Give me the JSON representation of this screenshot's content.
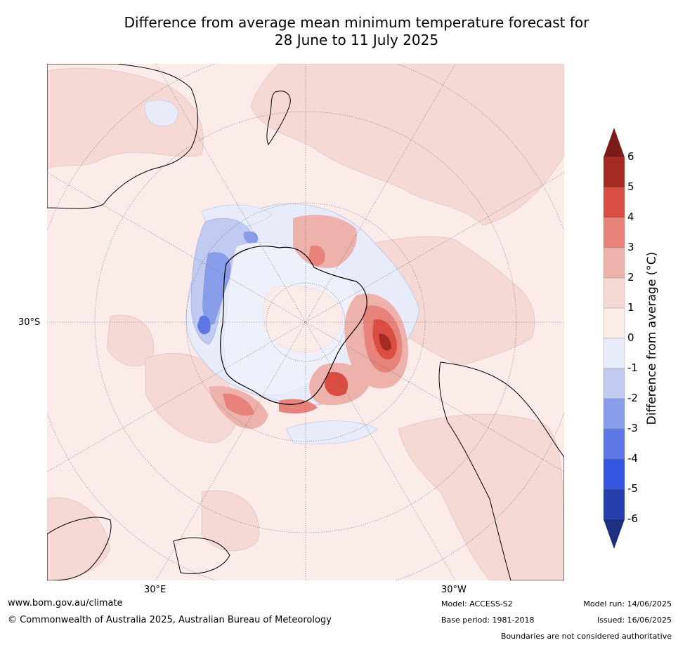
{
  "title": {
    "line1": "Difference from average mean minimum temperature forecast for",
    "line2": "28 June to 11 July 2025"
  },
  "map": {
    "projection": "south-polar-stereographic",
    "lat_label": "30°S",
    "lon_labels": [
      "30°E",
      "30°W"
    ],
    "background_color": "#fbecea",
    "anomaly_regions": [
      {
        "name": "antarctic-interior",
        "color": "#e8ecfa"
      },
      {
        "name": "weddell-sea-warm",
        "color": "#d84c40"
      },
      {
        "name": "ross-sea-warm",
        "color": "#e06050"
      },
      {
        "name": "east-antarctic-coast-cool",
        "color": "#6a82e6"
      }
    ]
  },
  "colorbar": {
    "label": "Difference from average (°C)",
    "ticks": [
      "6",
      "5",
      "4",
      "3",
      "2",
      "1",
      "0",
      "-1",
      "-2",
      "-3",
      "-4",
      "-5",
      "-6"
    ],
    "colors": [
      "#a52a23",
      "#d94d43",
      "#e8837b",
      "#eeb2ac",
      "#f6d8d5",
      "#fbecea",
      "#e8ecfa",
      "#c1caf1",
      "#8a9deb",
      "#5d78e6",
      "#3454e2",
      "#253fae"
    ],
    "top_extend_color": "#7a1c18",
    "bottom_extend_color": "#1f2f80"
  },
  "footer": {
    "url": "www.bom.gov.au/climate",
    "copyright": "© Commonwealth of Australia 2025, Australian Bureau of Meteorology",
    "model": "Model: ACCESS-S2",
    "base_period": "Base period: 1981-2018",
    "model_run": "Model run: 14/06/2025",
    "issued": "Issued: 16/06/2025",
    "disclaimer": "Boundaries are not considered authoritative"
  }
}
